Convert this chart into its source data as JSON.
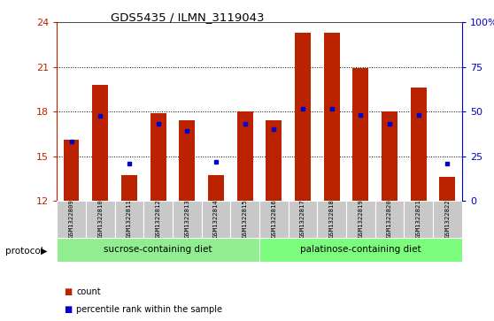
{
  "title": "GDS5435 / ILMN_3119043",
  "samples": [
    "GSM1322809",
    "GSM1322810",
    "GSM1322811",
    "GSM1322812",
    "GSM1322813",
    "GSM1322814",
    "GSM1322815",
    "GSM1322816",
    "GSM1322817",
    "GSM1322818",
    "GSM1322819",
    "GSM1322820",
    "GSM1322821",
    "GSM1322822"
  ],
  "count_values": [
    16.1,
    19.8,
    13.7,
    17.9,
    17.4,
    13.7,
    18.0,
    17.4,
    23.3,
    23.3,
    20.9,
    18.0,
    19.6,
    13.6
  ],
  "percentile_values": [
    16.0,
    17.7,
    14.5,
    17.2,
    16.7,
    14.6,
    17.2,
    16.8,
    18.2,
    18.2,
    17.8,
    17.2,
    17.8,
    14.5
  ],
  "y_min": 12,
  "y_max": 24,
  "y_ticks_left": [
    12,
    15,
    18,
    21,
    24
  ],
  "y_ticks_right": [
    0,
    25,
    50,
    75,
    100
  ],
  "bar_color": "#BB2200",
  "marker_color": "#0000CC",
  "group1_label": "sucrose-containing diet",
  "group2_label": "palatinose-containing diet",
  "group1_count": 7,
  "group2_count": 7,
  "group1_bg": "#90EE90",
  "group2_bg": "#7CFC7C",
  "xlabel_bg": "#C8C8C8",
  "protocol_text": "protocol",
  "legend_count": "count",
  "legend_percentile": "percentile rank within the sample"
}
